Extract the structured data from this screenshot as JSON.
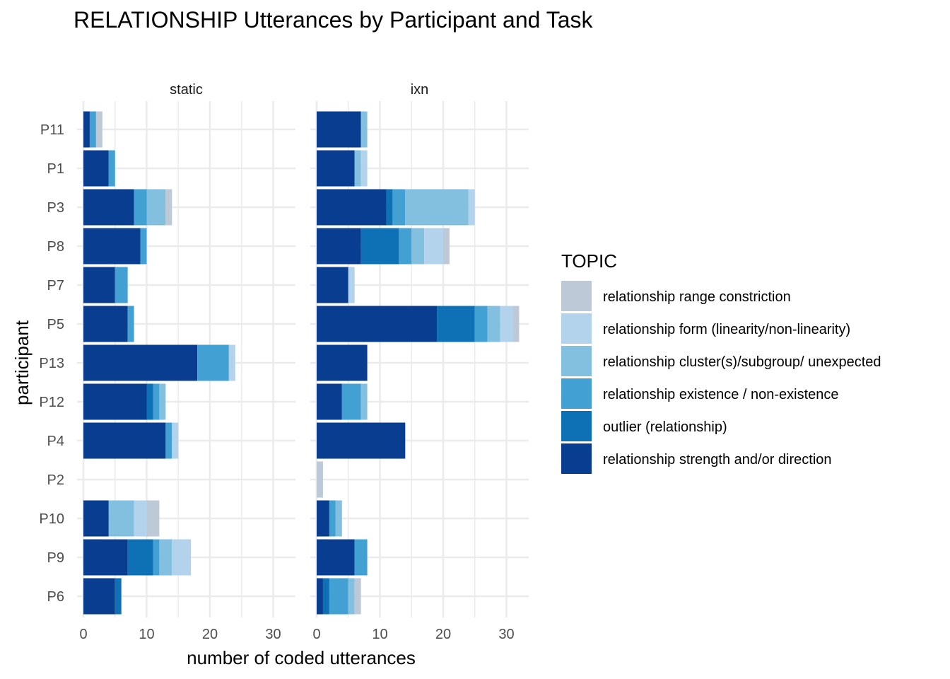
{
  "chart_data": {
    "type": "bar",
    "orientation": "horizontal",
    "stacked": true,
    "title": "RELATIONSHIP Utterances by Participant and Task",
    "xlabel": "number of coded utterances",
    "ylabel": "participant",
    "xlim": [
      0,
      33
    ],
    "x_ticks": [
      0,
      10,
      20,
      30
    ],
    "grid": true,
    "legend_position": "right",
    "legend_title": "TOPIC",
    "participants": [
      "P11",
      "P1",
      "P3",
      "P8",
      "P7",
      "P5",
      "P13",
      "P12",
      "P4",
      "P2",
      "P10",
      "P9",
      "P6"
    ],
    "topics": [
      {
        "name": "relationship range constriction",
        "color": "#bdc9d6"
      },
      {
        "name": "relationship form (linearity/non-linearity)",
        "color": "#b3d3ec"
      },
      {
        "name": "relationship cluster(s)/subgroup/ unexpected",
        "color": "#83c0df"
      },
      {
        "name": "relationship existence / non-existence",
        "color": "#42a0d3"
      },
      {
        "name": "outlier (relationship)",
        "color": "#0e71b6"
      },
      {
        "name": "relationship strength and/or direction",
        "color": "#083d8f"
      }
    ],
    "stack_order": [
      "relationship strength and/or direction",
      "outlier (relationship)",
      "relationship existence / non-existence",
      "relationship cluster(s)/subgroup/ unexpected",
      "relationship form (linearity/non-linearity)",
      "relationship range constriction"
    ],
    "panels": [
      {
        "label": "static",
        "values": {
          "P11": [
            1,
            0,
            1,
            0,
            0,
            1
          ],
          "P1": [
            4,
            0,
            1,
            0,
            0,
            0
          ],
          "P3": [
            8,
            0,
            2,
            3,
            0,
            1
          ],
          "P8": [
            9,
            0,
            1,
            0,
            0,
            0
          ],
          "P7": [
            5,
            0,
            2,
            0,
            0,
            0
          ],
          "P5": [
            7,
            0,
            1,
            0,
            0,
            0
          ],
          "P13": [
            18,
            0,
            5,
            0,
            1,
            0
          ],
          "P12": [
            10,
            1,
            1,
            1,
            0,
            0
          ],
          "P4": [
            13,
            0,
            1,
            0,
            1,
            0
          ],
          "P2": [
            0,
            0,
            0,
            0,
            0,
            0
          ],
          "P10": [
            4,
            0,
            0,
            4,
            2,
            2
          ],
          "P9": [
            7,
            4,
            1,
            2,
            3,
            0
          ],
          "P6": [
            5,
            1,
            0,
            0,
            0,
            0
          ]
        }
      },
      {
        "label": "ixn",
        "values": {
          "P11": [
            7,
            0,
            0,
            1,
            0,
            0
          ],
          "P1": [
            6,
            0,
            0,
            1,
            1,
            0
          ],
          "P3": [
            11,
            1,
            2,
            10,
            1,
            0
          ],
          "P8": [
            7,
            6,
            2,
            2,
            3,
            1
          ],
          "P7": [
            5,
            0,
            0,
            0,
            1,
            0
          ],
          "P5": [
            19,
            6,
            2,
            2,
            2,
            1
          ],
          "P13": [
            8,
            0,
            0,
            0,
            0,
            0
          ],
          "P12": [
            4,
            0,
            3,
            1,
            0,
            0
          ],
          "P4": [
            14,
            0,
            0,
            0,
            0,
            0
          ],
          "P2": [
            0,
            0,
            0,
            0,
            0,
            1
          ],
          "P10": [
            2,
            0,
            1,
            1,
            0,
            0
          ],
          "P9": [
            6,
            0,
            2,
            0,
            0,
            0
          ],
          "P6": [
            1,
            1,
            3,
            1,
            0,
            1
          ]
        }
      }
    ]
  }
}
